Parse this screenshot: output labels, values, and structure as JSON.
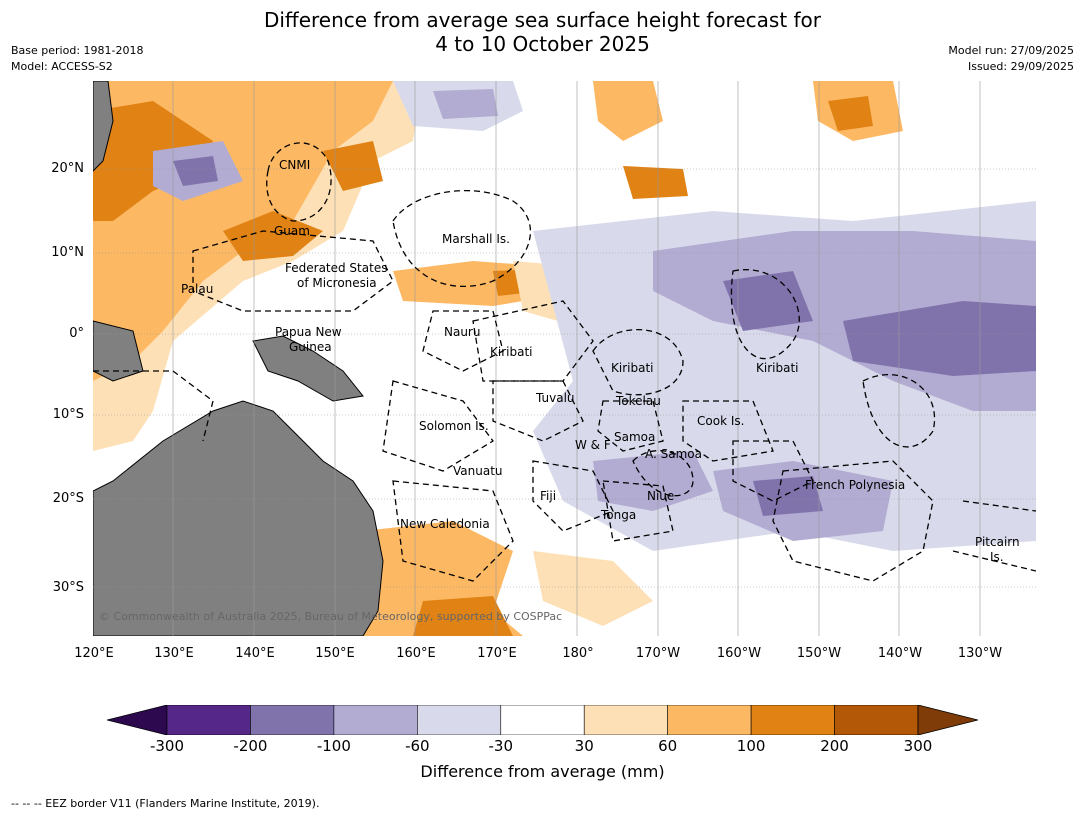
{
  "title_line1": "Difference from average sea surface height forecast for",
  "title_line2": "4 to 10 October 2025",
  "meta_left": {
    "base_period": "Base period: 1981-2018",
    "model": "Model: ACCESS-S2"
  },
  "meta_right": {
    "model_run": "Model run: 27/09/2025",
    "issued": "Issued: 29/09/2025"
  },
  "lat_labels": [
    "20°N",
    "10°N",
    "0°",
    "10°S",
    "20°S",
    "30°S"
  ],
  "lon_labels": [
    "120°E",
    "130°E",
    "140°E",
    "150°E",
    "160°E",
    "170°E",
    "180°",
    "170°W",
    "160°W",
    "150°W",
    "140°W",
    "130°W"
  ],
  "region_labels": {
    "cnmi": "CNMI",
    "guam": "Guam",
    "marshall": "Marshall Is.",
    "fsm1": "Federated States",
    "fsm2": "of Micronesia",
    "palau": "Palau",
    "png1": "Papua New",
    "png2": "Guinea",
    "nauru": "Nauru",
    "kiribati1": "Kiribati",
    "kiribati2": "Kiribati",
    "kiribati3": "Kiribati",
    "tuvalu": "Tuvalu",
    "tokelau": "Tokelau",
    "cook": "Cook Is.",
    "solomon": "Solomon Is.",
    "wf": "W & F",
    "samoa": "Samoa",
    "asamoa": "A. Samoa",
    "vanuatu": "Vanuatu",
    "fiji": "Fiji",
    "niue": "Niue",
    "tonga": "Tonga",
    "french_polynesia": "French Polynesia",
    "new_caledonia": "New Caledonia",
    "pitcairn1": "Pitcairn",
    "pitcairn2": "Is."
  },
  "copyright": "© Commonwealth of Australia 2025, Bureau of Meteorology, supported by COSPPac",
  "colorbar": {
    "ticks": [
      "-300",
      "-200",
      "-100",
      "-60",
      "-30",
      "30",
      "60",
      "100",
      "200",
      "300"
    ],
    "colors": [
      "#2d0a50",
      "#542788",
      "#8073ac",
      "#b2abd2",
      "#d8daeb",
      "#ffffff",
      "#fee0b6",
      "#fdb863",
      "#e08214",
      "#b35806",
      "#7f3b08"
    ],
    "title": "Difference from average (mm)"
  },
  "footer": "--  --  -- EEZ border V11 (Flanders Marine Institute, 2019)."
}
